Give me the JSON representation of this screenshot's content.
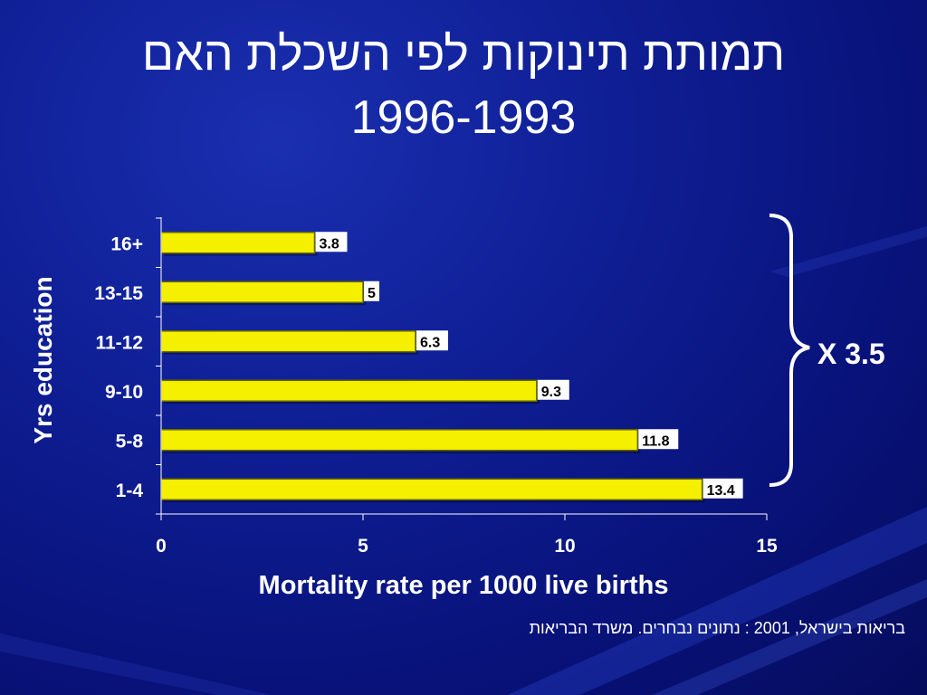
{
  "slide": {
    "title_line1": "תמותת תינוקות לפי השכלת האם",
    "title_line2": "1996-1993",
    "source": "בריאות בישראל, 2001 : נתונים נבחרים. משרד הבריאות"
  },
  "colors": {
    "bar_fill": "#f5f000",
    "bar_stroke": "#6b6b00",
    "background": "#0f1f96",
    "text": "#ffffff",
    "label_text": "#000000"
  },
  "chart_data": {
    "type": "bar",
    "orientation": "horizontal",
    "categories": [
      "16+",
      "13-15",
      "11-12",
      "9-10",
      "5-8",
      "1-4"
    ],
    "values": [
      3.8,
      5,
      6.3,
      9.3,
      11.8,
      13.4
    ],
    "value_labels": [
      "3.8",
      "5",
      "6.3",
      "9.3",
      "11.8",
      "13.4"
    ],
    "xlabel": "Mortality rate per 1000 live births",
    "ylabel": "Yrs education",
    "xlim": [
      0,
      15
    ],
    "xticks": [
      "0",
      "5",
      "10",
      "15"
    ],
    "grid": false,
    "legend": "none",
    "annotation": "X 3.5"
  }
}
